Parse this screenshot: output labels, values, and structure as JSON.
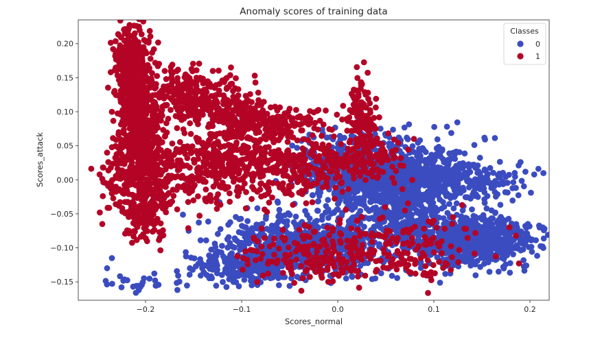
{
  "chart_data": {
    "type": "scatter",
    "title": "Anomaly scores of training data",
    "xlabel": "Scores_normal",
    "ylabel": "Scores_attack",
    "xlim": [
      -0.27,
      0.22
    ],
    "ylim": [
      -0.177,
      0.235
    ],
    "x_ticks": [
      -0.2,
      -0.1,
      0.0,
      0.1,
      0.2
    ],
    "x_tick_labels": [
      "−0.2",
      "−0.1",
      "0.0",
      "0.1",
      "0.2"
    ],
    "y_ticks": [
      -0.15,
      -0.1,
      -0.05,
      0.0,
      0.05,
      0.1,
      0.15,
      0.2
    ],
    "y_tick_labels": [
      "−0.15",
      "−0.10",
      "−0.05",
      "0.00",
      "0.05",
      "0.10",
      "0.15",
      "0.20"
    ],
    "grid": false,
    "legend": {
      "title": "Classes",
      "placement": "top-right",
      "entries": [
        {
          "label": "0",
          "color": "#3b4cc0"
        },
        {
          "label": "1",
          "color": "#b40426"
        }
      ]
    },
    "series": [
      {
        "name": "0",
        "color": "#3b4cc0",
        "blobs": [
          {
            "cx": 0.065,
            "cy": -0.01,
            "sx": 0.035,
            "sy": 0.035,
            "n": 900
          },
          {
            "cx": 0.14,
            "cy": -0.09,
            "sx": 0.03,
            "sy": 0.018,
            "n": 700
          },
          {
            "cx": -0.03,
            "cy": -0.095,
            "sx": 0.045,
            "sy": 0.022,
            "n": 700
          },
          {
            "cx": -0.09,
            "cy": -0.13,
            "sx": 0.03,
            "sy": 0.012,
            "n": 220
          },
          {
            "cx": 0.01,
            "cy": 0.02,
            "sx": 0.03,
            "sy": 0.025,
            "n": 300
          },
          {
            "cx": 0.12,
            "cy": 0.0,
            "sx": 0.035,
            "sy": 0.012,
            "n": 250
          },
          {
            "cx": -0.2,
            "cy": -0.15,
            "sx": 0.025,
            "sy": 0.006,
            "n": 25
          }
        ],
        "points": [
          [
            -0.24,
            -0.13
          ],
          [
            -0.225,
            -0.158
          ],
          [
            -0.21,
            -0.166
          ],
          [
            -0.205,
            -0.155
          ],
          [
            -0.235,
            -0.115
          ],
          [
            -0.19,
            -0.148
          ],
          [
            0.19,
            -0.085
          ],
          [
            0.195,
            -0.09
          ],
          [
            0.188,
            -0.075
          ],
          [
            0.13,
            -0.045
          ],
          [
            0.05,
            0.065
          ]
        ]
      },
      {
        "name": "1",
        "color": "#b40426",
        "blobs": [
          {
            "cx": -0.215,
            "cy": 0.17,
            "sx": 0.008,
            "sy": 0.03,
            "n": 400
          },
          {
            "cx": -0.207,
            "cy": 0.1,
            "sx": 0.01,
            "sy": 0.035,
            "n": 350
          },
          {
            "cx": -0.2,
            "cy": 0.02,
            "sx": 0.014,
            "sy": 0.04,
            "n": 350
          },
          {
            "cx": -0.2,
            "cy": -0.045,
            "sx": 0.012,
            "sy": 0.02,
            "n": 150
          },
          {
            "cx": -0.15,
            "cy": 0.125,
            "sx": 0.02,
            "sy": 0.02,
            "n": 250
          },
          {
            "cx": -0.11,
            "cy": 0.085,
            "sx": 0.018,
            "sy": 0.025,
            "n": 200
          },
          {
            "cx": -0.14,
            "cy": 0.02,
            "sx": 0.03,
            "sy": 0.025,
            "n": 300
          },
          {
            "cx": -0.05,
            "cy": 0.02,
            "sx": 0.035,
            "sy": 0.025,
            "n": 300
          },
          {
            "cx": 0.025,
            "cy": 0.085,
            "sx": 0.008,
            "sy": 0.03,
            "n": 130
          },
          {
            "cx": 0.03,
            "cy": 0.03,
            "sx": 0.02,
            "sy": 0.015,
            "n": 110
          },
          {
            "cx": -0.07,
            "cy": 0.085,
            "sx": 0.03,
            "sy": 0.012,
            "n": 150
          },
          {
            "cx": -0.02,
            "cy": -0.11,
            "sx": 0.04,
            "sy": 0.02,
            "n": 180
          },
          {
            "cx": 0.06,
            "cy": -0.1,
            "sx": 0.05,
            "sy": 0.025,
            "n": 160
          },
          {
            "cx": -0.23,
            "cy": 0.01,
            "sx": 0.01,
            "sy": 0.03,
            "n": 70
          }
        ],
        "points": [
          [
            -0.245,
            -0.065
          ],
          [
            -0.24,
            0.04
          ],
          [
            -0.235,
            -0.02
          ],
          [
            -0.18,
            0.16
          ],
          [
            -0.165,
            0.135
          ],
          [
            -0.185,
            -0.085
          ],
          [
            0.07,
            -0.045
          ],
          [
            0.1,
            -0.06
          ],
          [
            0.12,
            -0.055
          ],
          [
            -0.16,
            0.09
          ],
          [
            -0.13,
            0.16
          ]
        ]
      }
    ]
  }
}
